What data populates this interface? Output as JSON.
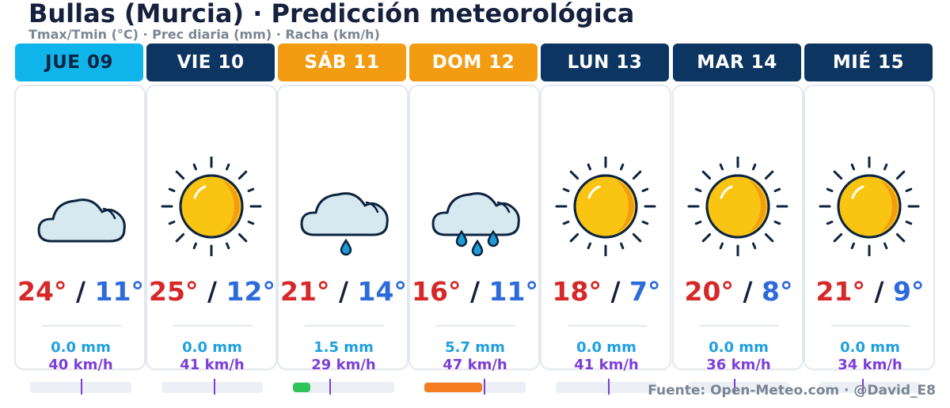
{
  "title": "Bullas (Murcia) · Predicción meteorológica",
  "subtitle": "Tmax/Tmin (°C) · Prec diaria (mm) · Racha (km/h)",
  "footer": "Fuente: Open-Meteo.com · @David_E8",
  "days": [
    {
      "label": "JUE 09",
      "header_bg": "#0fb5ea",
      "header_fg": "#0d2440",
      "icon": "cloud-icon",
      "tmax": "24°",
      "sep": "/",
      "tmin": "11°",
      "precip": "0.0 mm",
      "gust": "40 km/h",
      "precip_mm": 0.0,
      "gust_kmh": 40,
      "bar_color": ""
    },
    {
      "label": "VIE 10",
      "header_bg": "#0d3561",
      "header_fg": "#ffffff",
      "icon": "sun-icon",
      "tmax": "25°",
      "sep": "/",
      "tmin": "12°",
      "precip": "0.0 mm",
      "gust": "41 km/h",
      "precip_mm": 0.0,
      "gust_kmh": 41,
      "bar_color": ""
    },
    {
      "label": "SÁB 11",
      "header_bg": "#f39c12",
      "header_fg": "#ffffff",
      "icon": "rain-cloud-icon",
      "tmax": "21°",
      "sep": "/",
      "tmin": "14°",
      "precip": "1.5 mm",
      "gust": "29 km/h",
      "precip_mm": 1.5,
      "gust_kmh": 29,
      "bar_color": "#2ec45a"
    },
    {
      "label": "DOM 12",
      "header_bg": "#f39c12",
      "header_fg": "#ffffff",
      "icon": "showers-cloud-icon",
      "tmax": "16°",
      "sep": "/",
      "tmin": "11°",
      "precip": "5.7 mm",
      "gust": "47 km/h",
      "precip_mm": 5.7,
      "gust_kmh": 47,
      "bar_color": "#f57c1f"
    },
    {
      "label": "LUN 13",
      "header_bg": "#0d3561",
      "header_fg": "#ffffff",
      "icon": "sun-icon",
      "tmax": "18°",
      "sep": "/",
      "tmin": "7°",
      "precip": "0.0 mm",
      "gust": "41 km/h",
      "precip_mm": 0.0,
      "gust_kmh": 41,
      "bar_color": ""
    },
    {
      "label": "MAR 14",
      "header_bg": "#0d3561",
      "header_fg": "#ffffff",
      "icon": "sun-icon",
      "tmax": "20°",
      "sep": "/",
      "tmin": "8°",
      "precip": "0.0 mm",
      "gust": "36 km/h",
      "precip_mm": 0.0,
      "gust_kmh": 36,
      "bar_color": ""
    },
    {
      "label": "MIÉ 15",
      "header_bg": "#0d3561",
      "header_fg": "#ffffff",
      "icon": "sun-icon",
      "tmax": "21°",
      "sep": "/",
      "tmin": "9°",
      "precip": "0.0 mm",
      "gust": "34 km/h",
      "precip_mm": 0.0,
      "gust_kmh": 34,
      "bar_color": ""
    }
  ]
}
